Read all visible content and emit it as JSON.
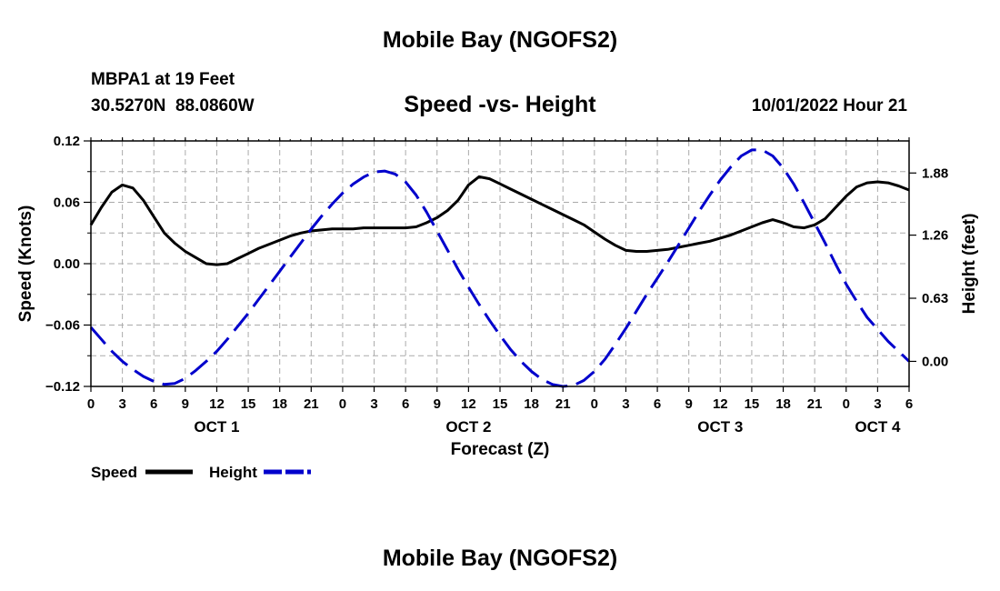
{
  "page": {
    "title": "Mobile Bay (NGOFS2)",
    "bottom_title": "Mobile Bay (NGOFS2)",
    "station": "MBPA1 at 19 Feet",
    "coords": "30.5270N  88.0860W",
    "datetime": "10/01/2022 Hour 21"
  },
  "colors": {
    "speed": "#000000",
    "height": "#0000cc",
    "grid": "#aaaaaa"
  },
  "chart_data": {
    "type": "line",
    "title": "Speed -vs- Height",
    "xlabel": "Forecast (Z)",
    "ylabel_left": "Speed (Knots)",
    "ylabel_right": "Height (feet)",
    "x_range": [
      0,
      78
    ],
    "x_ticks": [
      0,
      3,
      6,
      9,
      12,
      15,
      18,
      21,
      24,
      27,
      30,
      33,
      36,
      39,
      42,
      45,
      48,
      51,
      54,
      57,
      60,
      63,
      66,
      69,
      72,
      75,
      78
    ],
    "x_tick_labels": [
      "0",
      "3",
      "6",
      "9",
      "12",
      "15",
      "18",
      "21",
      "0",
      "3",
      "6",
      "9",
      "12",
      "15",
      "18",
      "21",
      "0",
      "3",
      "6",
      "9",
      "12",
      "15",
      "18",
      "21",
      "0",
      "3",
      "6"
    ],
    "day_labels": [
      {
        "x": 12,
        "label": "OCT 1"
      },
      {
        "x": 36,
        "label": "OCT 2"
      },
      {
        "x": 60,
        "label": "OCT 3"
      },
      {
        "x": 75,
        "label": "OCT 4"
      }
    ],
    "y_left": {
      "range": [
        -0.12,
        0.12
      ],
      "ticks": [
        -0.12,
        -0.06,
        0.0,
        0.06,
        0.12
      ],
      "tick_labels": [
        "−0.12",
        "−0.06",
        "0.00",
        "0.06",
        "0.12"
      ]
    },
    "y_right": {
      "range": [
        -0.25,
        2.2
      ],
      "ticks": [
        0.0,
        0.63,
        1.26,
        1.88
      ],
      "tick_labels": [
        "0.00",
        "0.63",
        "1.26",
        "1.88"
      ]
    },
    "legend": [
      {
        "name": "Speed",
        "style": "solid"
      },
      {
        "name": "Height",
        "style": "dashed"
      }
    ],
    "series": [
      {
        "name": "Speed",
        "axis": "left",
        "x": [
          0,
          1,
          2,
          3,
          4,
          5,
          6,
          7,
          8,
          9,
          10,
          11,
          12,
          13,
          14,
          15,
          16,
          17,
          18,
          19,
          20,
          21,
          22,
          23,
          24,
          25,
          26,
          27,
          28,
          29,
          30,
          31,
          32,
          33,
          34,
          35,
          36,
          37,
          38,
          39,
          40,
          41,
          42,
          43,
          44,
          45,
          46,
          47,
          48,
          49,
          50,
          51,
          52,
          53,
          54,
          55,
          56,
          57,
          58,
          59,
          60,
          61,
          62,
          63,
          64,
          65,
          66,
          67,
          68,
          69,
          70,
          71,
          72,
          73,
          74,
          75,
          76,
          77,
          78
        ],
        "values": [
          0.038,
          0.055,
          0.07,
          0.077,
          0.074,
          0.062,
          0.046,
          0.03,
          0.02,
          0.012,
          0.006,
          0.0,
          -0.001,
          0.0,
          0.005,
          0.01,
          0.015,
          0.019,
          0.023,
          0.027,
          0.03,
          0.032,
          0.033,
          0.034,
          0.034,
          0.034,
          0.035,
          0.035,
          0.035,
          0.035,
          0.035,
          0.036,
          0.04,
          0.045,
          0.052,
          0.062,
          0.077,
          0.085,
          0.083,
          0.078,
          0.073,
          0.068,
          0.063,
          0.058,
          0.053,
          0.048,
          0.043,
          0.038,
          0.031,
          0.024,
          0.018,
          0.013,
          0.012,
          0.012,
          0.013,
          0.014,
          0.016,
          0.018,
          0.02,
          0.022,
          0.025,
          0.028,
          0.032,
          0.036,
          0.04,
          0.043,
          0.04,
          0.036,
          0.035,
          0.038,
          0.044,
          0.055,
          0.066,
          0.075,
          0.079,
          0.08,
          0.079,
          0.076,
          0.072
        ]
      },
      {
        "name": "Height",
        "axis": "right",
        "x": [
          0,
          1,
          2,
          3,
          4,
          5,
          6,
          7,
          8,
          9,
          10,
          11,
          12,
          13,
          14,
          15,
          16,
          17,
          18,
          19,
          20,
          21,
          22,
          23,
          24,
          25,
          26,
          27,
          28,
          29,
          30,
          31,
          32,
          33,
          34,
          35,
          36,
          37,
          38,
          39,
          40,
          41,
          42,
          43,
          44,
          45,
          46,
          47,
          48,
          49,
          50,
          51,
          52,
          53,
          54,
          55,
          56,
          57,
          58,
          59,
          60,
          61,
          62,
          63,
          64,
          65,
          66,
          67,
          68,
          69,
          70,
          71,
          72,
          73,
          74,
          75,
          76,
          77,
          78
        ],
        "values": [
          0.34,
          0.22,
          0.1,
          0.0,
          -0.08,
          -0.15,
          -0.2,
          -0.23,
          -0.22,
          -0.17,
          -0.09,
          0.0,
          0.1,
          0.22,
          0.35,
          0.48,
          0.62,
          0.76,
          0.9,
          1.04,
          1.18,
          1.32,
          1.45,
          1.57,
          1.68,
          1.77,
          1.84,
          1.89,
          1.9,
          1.87,
          1.79,
          1.66,
          1.49,
          1.3,
          1.11,
          0.92,
          0.74,
          0.57,
          0.41,
          0.26,
          0.12,
          0.0,
          -0.1,
          -0.18,
          -0.23,
          -0.25,
          -0.24,
          -0.19,
          -0.1,
          0.02,
          0.17,
          0.33,
          0.5,
          0.67,
          0.83,
          0.99,
          1.16,
          1.33,
          1.5,
          1.66,
          1.81,
          1.94,
          2.05,
          2.11,
          2.11,
          2.05,
          1.93,
          1.77,
          1.58,
          1.38,
          1.18,
          0.97,
          0.77,
          0.6,
          0.44,
          0.32,
          0.2,
          0.1,
          0.0
        ]
      }
    ]
  }
}
